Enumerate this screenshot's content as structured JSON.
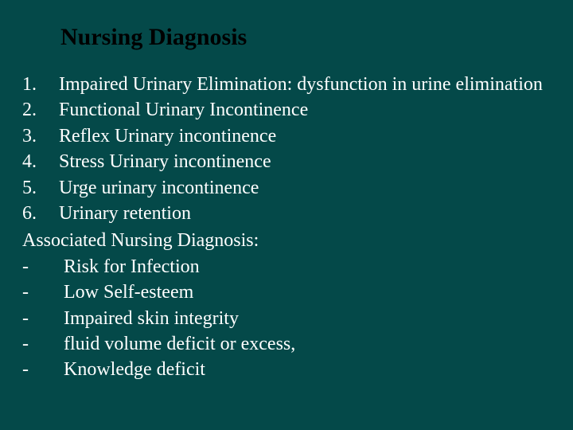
{
  "background_color": "#044949",
  "title_color": "#000000",
  "text_color": "#ffffff",
  "font_family": "Times New Roman",
  "title_fontsize": 30,
  "body_fontsize": 24,
  "title": "Nursing Diagnosis",
  "numbered": [
    {
      "n": "1.",
      "text": "Impaired Urinary Elimination: dysfunction in urine elimination"
    },
    {
      "n": "2.",
      "text": "Functional Urinary Incontinence"
    },
    {
      "n": "3.",
      "text": "Reflex Urinary incontinence"
    },
    {
      "n": "4.",
      "text": "Stress Urinary incontinence"
    },
    {
      "n": "5.",
      "text": "Urge urinary incontinence"
    },
    {
      "n": "6.",
      "text": "Urinary retention"
    }
  ],
  "subheading": "Associated Nursing Diagnosis:",
  "bullets": [
    "Risk for Infection",
    "Low Self-esteem",
    " Impaired skin integrity",
    "fluid volume deficit or excess,",
    " Knowledge deficit"
  ]
}
